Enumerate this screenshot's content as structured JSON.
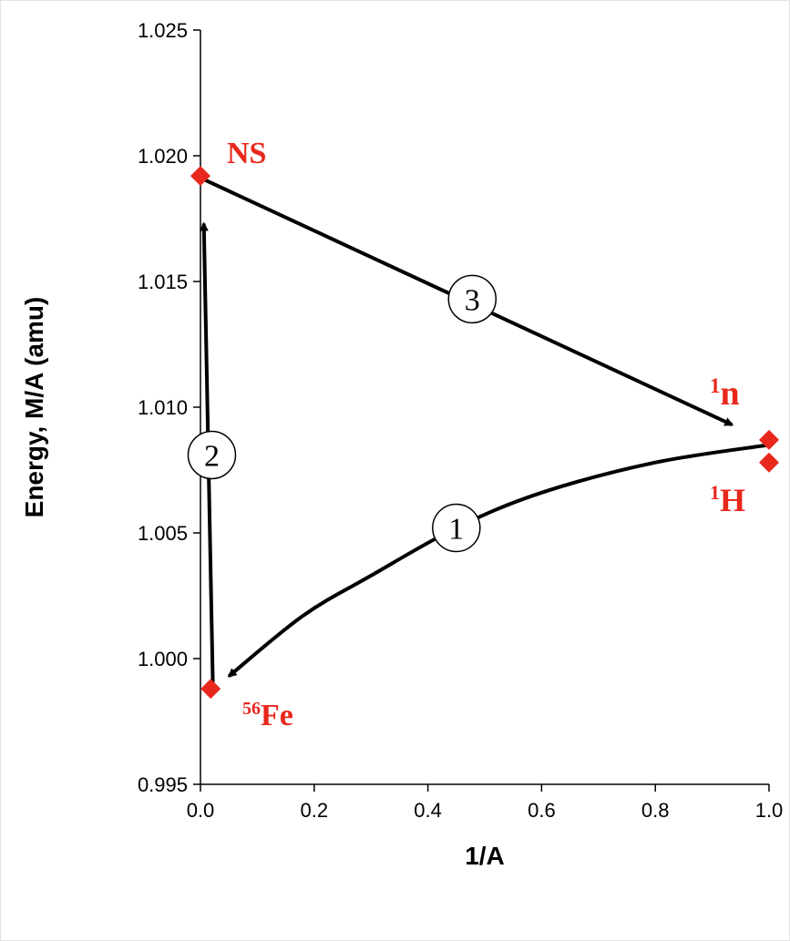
{
  "chart_data": {
    "type": "scatter",
    "xlabel": "1/A",
    "ylabel": "Energy, M/A (amu)",
    "xlim": [
      0.0,
      1.0
    ],
    "ylim": [
      0.995,
      1.025
    ],
    "x_ticks": [
      "0.0",
      "0.2",
      "0.4",
      "0.6",
      "0.8",
      "1.0"
    ],
    "y_ticks": [
      "0.995",
      "1.000",
      "1.005",
      "1.010",
      "1.015",
      "1.020",
      "1.025"
    ],
    "grid": false,
    "marker_color": "#e8281c",
    "points": [
      {
        "label_sup": "",
        "label_main": "NS",
        "x": 0.0,
        "y": 1.0192
      },
      {
        "label_sup": "56",
        "label_main": "Fe",
        "x": 0.018,
        "y": 0.9988
      },
      {
        "label_sup": "1",
        "label_main": "n",
        "x": 1.0,
        "y": 1.0087
      },
      {
        "label_sup": "1",
        "label_main": "H",
        "x": 1.0,
        "y": 1.0078
      }
    ],
    "paths": [
      {
        "step": "1",
        "from": "1H to 56Fe",
        "x": [
          1.0,
          0.8,
          0.6,
          0.45,
          0.3,
          0.18,
          0.05
        ],
        "y": [
          1.0085,
          1.0078,
          1.0066,
          1.0052,
          1.0033,
          1.0017,
          0.9993
        ]
      },
      {
        "step": "2",
        "from": "56Fe to NS",
        "x": [
          0.022,
          0.006
        ],
        "y": [
          0.9988,
          1.0173
        ]
      },
      {
        "step": "3",
        "from": "NS to 1n",
        "x": [
          0.002,
          0.935
        ],
        "y": [
          1.0191,
          1.0093
        ]
      }
    ],
    "annotations": [
      "1",
      "2",
      "3"
    ]
  }
}
